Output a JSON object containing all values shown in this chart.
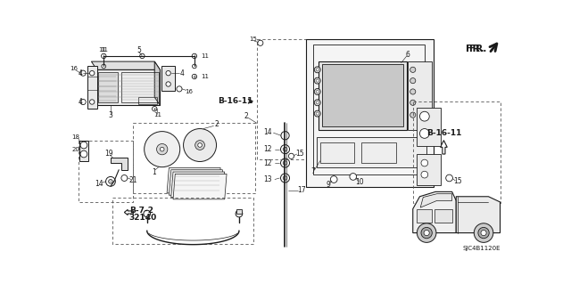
{
  "bg_color": "#ffffff",
  "line_color": "#1a1a1a",
  "gray_fill": "#d8d8d8",
  "figsize": [
    6.4,
    3.19
  ],
  "dpi": 100,
  "diagram_code": "SJC4B1120E",
  "fr_label": "FR.",
  "b1611_label": "B-16-11",
  "b72_label": "B-7-2",
  "b72_num": "32140"
}
